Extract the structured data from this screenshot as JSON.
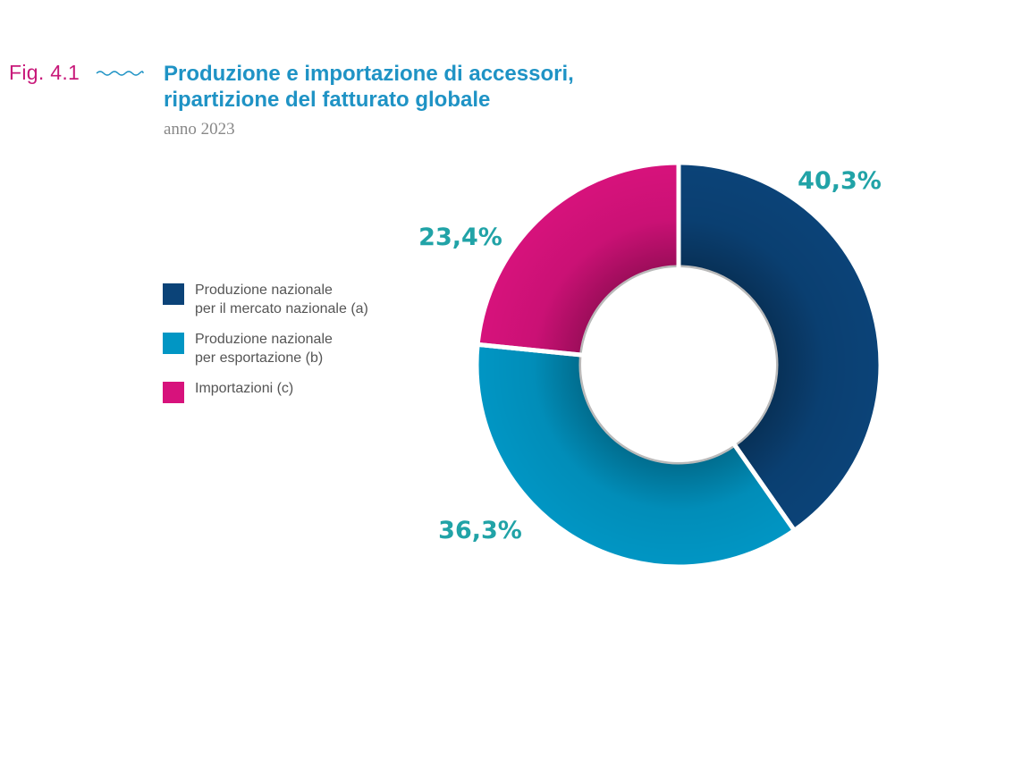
{
  "figure": {
    "number": "Fig. 4.1",
    "title_line1": "Produzione e importazione di accessori,",
    "title_line2": "ripartizione del fatturato globale",
    "subtitle": "anno 2023"
  },
  "colors": {
    "figure_number": "#c8197a",
    "title": "#1f93c5",
    "value_labels": "#21a3a7"
  },
  "chart_data": {
    "type": "pie",
    "style": "donut",
    "legend_position": "left",
    "slices": [
      {
        "label": "Produzione nazionale\nper il mercato nazionale (a)",
        "value": 40.3,
        "value_label": "40,3%",
        "color": "#0b4378"
      },
      {
        "label": "Produzione nazionale\nper esportazione (b)",
        "value": 36.3,
        "value_label": "36,3%",
        "color": "#0196c4"
      },
      {
        "label": "Importazioni (c)",
        "value": 23.4,
        "value_label": "23,4%",
        "color": "#d7127c"
      }
    ]
  }
}
